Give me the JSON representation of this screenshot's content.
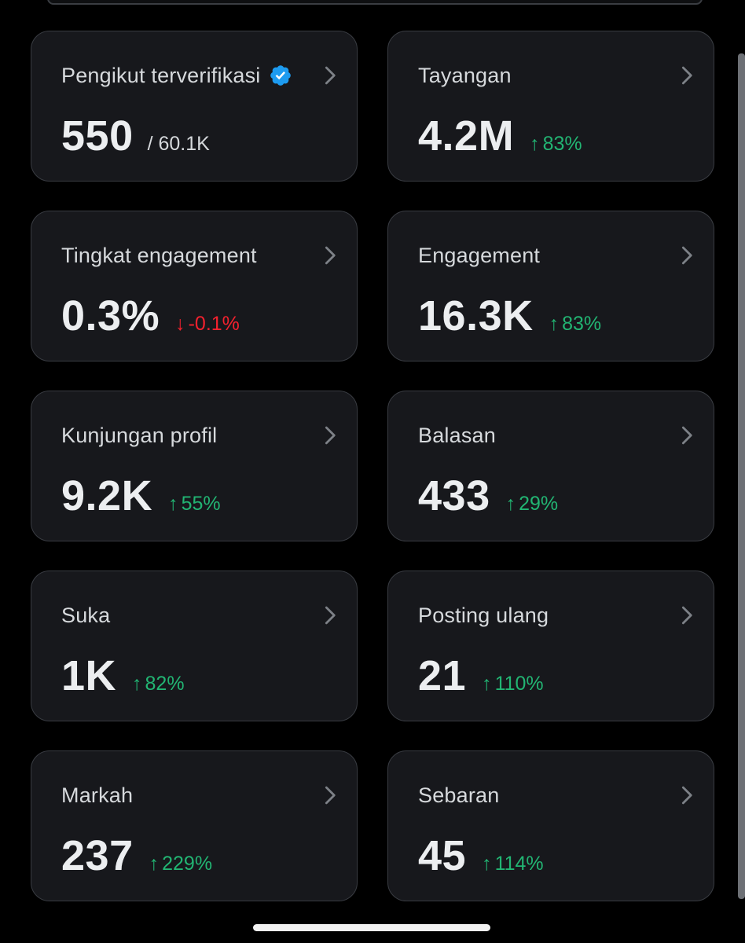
{
  "colors": {
    "background": "#000000",
    "card": "#17181c",
    "border": "#393c42",
    "positive": "#22b573",
    "negative": "#f4212e",
    "verified": "#1d9bf0"
  },
  "cards": [
    {
      "title": "Pengikut terverifikasi",
      "icon": "verified-badge-icon",
      "value": "550",
      "sub": "/ 60.1K"
    },
    {
      "title": "Tayangan",
      "value": "4.2M",
      "change": {
        "arrow": "↑",
        "text": "83%",
        "direction": "up"
      }
    },
    {
      "title": "Tingkat engagement",
      "value": "0.3%",
      "change": {
        "arrow": "↓",
        "text": "-0.1%",
        "direction": "down"
      }
    },
    {
      "title": "Engagement",
      "value": "16.3K",
      "change": {
        "arrow": "↑",
        "text": "83%",
        "direction": "up"
      }
    },
    {
      "title": "Kunjungan profil",
      "value": "9.2K",
      "change": {
        "arrow": "↑",
        "text": "55%",
        "direction": "up"
      }
    },
    {
      "title": "Balasan",
      "value": "433",
      "change": {
        "arrow": "↑",
        "text": "29%",
        "direction": "up"
      }
    },
    {
      "title": "Suka",
      "value": "1K",
      "change": {
        "arrow": "↑",
        "text": "82%",
        "direction": "up"
      }
    },
    {
      "title": "Posting ulang",
      "value": "21",
      "change": {
        "arrow": "↑",
        "text": "110%",
        "direction": "up"
      }
    },
    {
      "title": "Markah",
      "value": "237",
      "change": {
        "arrow": "↑",
        "text": "229%",
        "direction": "up"
      }
    },
    {
      "title": "Sebaran",
      "value": "45",
      "change": {
        "arrow": "↑",
        "text": "114%",
        "direction": "up"
      }
    }
  ]
}
